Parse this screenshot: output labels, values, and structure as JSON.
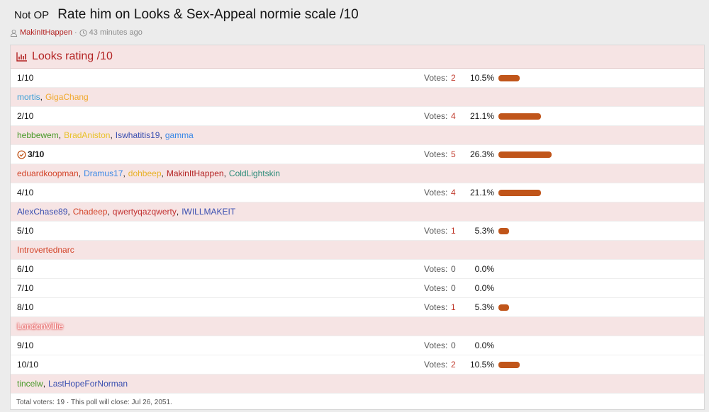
{
  "header": {
    "prefix": "Not OP",
    "title": "Rate him on Looks & Sex-Appeal normie scale /10",
    "author": "MakinItHappen",
    "time": "43 minutes ago"
  },
  "poll": {
    "title": "Looks rating /10",
    "votes_label": "Votes:",
    "separator": ",",
    "options": [
      {
        "label": "1/10",
        "votes": 2,
        "percent": "10.5%",
        "voters": [
          {
            "name": "mortis",
            "color": "#3a9fd6"
          },
          {
            "name": "GigaChang",
            "color": "#f0a92e"
          }
        ]
      },
      {
        "label": "2/10",
        "votes": 4,
        "percent": "21.1%",
        "voters": [
          {
            "name": "hebbewem",
            "color": "#4a9a2a"
          },
          {
            "name": "BradAniston",
            "color": "#e8c22a"
          },
          {
            "name": "Iswhatitis19",
            "color": "#3a4fb0"
          },
          {
            "name": "gamma",
            "color": "#3a88e6"
          }
        ]
      },
      {
        "label": "3/10",
        "votes": 5,
        "percent": "26.3%",
        "winner": true,
        "voters": [
          {
            "name": "eduardkoopman",
            "color": "#d3452a"
          },
          {
            "name": "Dramus17",
            "color": "#3a88e6"
          },
          {
            "name": "dohbeep",
            "color": "#e8b22a"
          },
          {
            "name": "MakinItHappen",
            "color": "#b32222"
          },
          {
            "name": "ColdLightskin",
            "color": "#2a8a78"
          }
        ]
      },
      {
        "label": "4/10",
        "votes": 4,
        "percent": "21.1%",
        "voters": [
          {
            "name": "AlexChase89",
            "color": "#3a4fb0"
          },
          {
            "name": "Chadeep",
            "color": "#d3452a"
          },
          {
            "name": "qwertyqazqwerty",
            "color": "#c23030"
          },
          {
            "name": "IWILLMAKEIT",
            "color": "#3a4fb0"
          }
        ]
      },
      {
        "label": "5/10",
        "votes": 1,
        "percent": "5.3%",
        "voters": [
          {
            "name": "Introvertednarc",
            "color": "#d3452a"
          }
        ]
      },
      {
        "label": "6/10",
        "votes": 0,
        "percent": "0.0%",
        "voters": []
      },
      {
        "label": "7/10",
        "votes": 0,
        "percent": "0.0%",
        "voters": []
      },
      {
        "label": "8/10",
        "votes": 1,
        "percent": "5.3%",
        "voters": [
          {
            "name": "LondonVillie",
            "color": "#ffffff"
          }
        ]
      },
      {
        "label": "9/10",
        "votes": 0,
        "percent": "0.0%",
        "voters": []
      },
      {
        "label": "10/10",
        "votes": 2,
        "percent": "10.5%",
        "voters": [
          {
            "name": "tincelw",
            "color": "#4a9a2a"
          },
          {
            "name": "LastHopeForNorman",
            "color": "#3a4fb0"
          }
        ]
      }
    ],
    "footer": {
      "total_label": "Total voters:",
      "total": 19,
      "close_text": "· This poll will close: Jul 26, 2051."
    }
  }
}
